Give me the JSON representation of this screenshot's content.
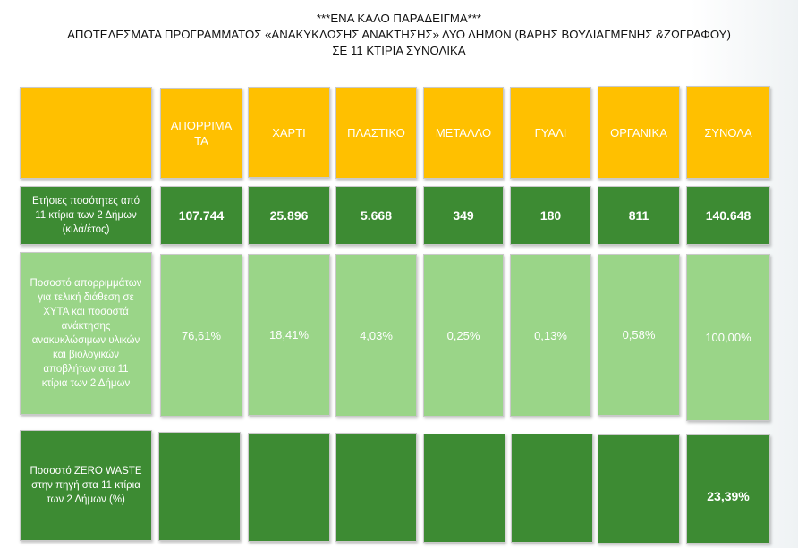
{
  "title": {
    "line1": "***ΕΝΑ ΚΑΛΟ ΠΑΡΑΔΕΙΓΜΑ***",
    "line2": "ΑΠΟΤΕΛΕΣΜΑΤΑ ΠΡΟΓΡΑΜΜΑΤΟΣ «ΑΝΑΚΥΚΛΩΣΗΣ ΑΝΑΚΤΗΣΗΣ» ΔΥΟ ΔΗΜΩΝ (ΒΑΡΗΣ ΒΟΥΛΙΑΓΜΕΝΗΣ &ΖΩΓΡΑΦΟΥ)",
    "line3": "ΣΕ 11 ΚΤΙΡΙΑ ΣΥΝΟΛΙΚΑ"
  },
  "table": {
    "headers": [
      "ΑΠΟΡΡΙΜΑΤΑ",
      "ΧΑΡΤΙ",
      "ΠΛΑΣΤΙΚΟ",
      "ΜΕΤΑΛΛΟ",
      "ΓΥΑΛΙ",
      "ΟΡΓΑΝΙΚΑ",
      "ΣΥΝΟΛΑ"
    ],
    "row1_label": "Ετήσιες ποσότητες από 11 κτίρια των 2 Δήμων (κιλά/έτος)",
    "row1_values": [
      "107.744",
      "25.896",
      "5.668",
      "349",
      "180",
      "811",
      "140.648"
    ],
    "row2_label": "Ποσοστό απορριμμάτων για τελική διάθεση σε ΧΥΤΑ και ποσοστά ανάκτησης ανακυκλώσιμων υλικών και βιολογικών αποβλήτων στα 11 κτίρια των 2 Δήμων",
    "row2_values": [
      "76,61%",
      "18,41%",
      "4,03%",
      "0,25%",
      "0,13%",
      "0,58%",
      "100,00%"
    ],
    "row3_label": "Ποσοστό ZERO WASTE στην πηγή στα 11 κτίρια των 2 Δήμων (%)",
    "row3_values": [
      "",
      "",
      "",
      "",
      "",
      "",
      "23,39%"
    ]
  },
  "colors": {
    "header": "#ffc000",
    "dark_green": "#3d8b33",
    "light_green": "#9ad588"
  }
}
